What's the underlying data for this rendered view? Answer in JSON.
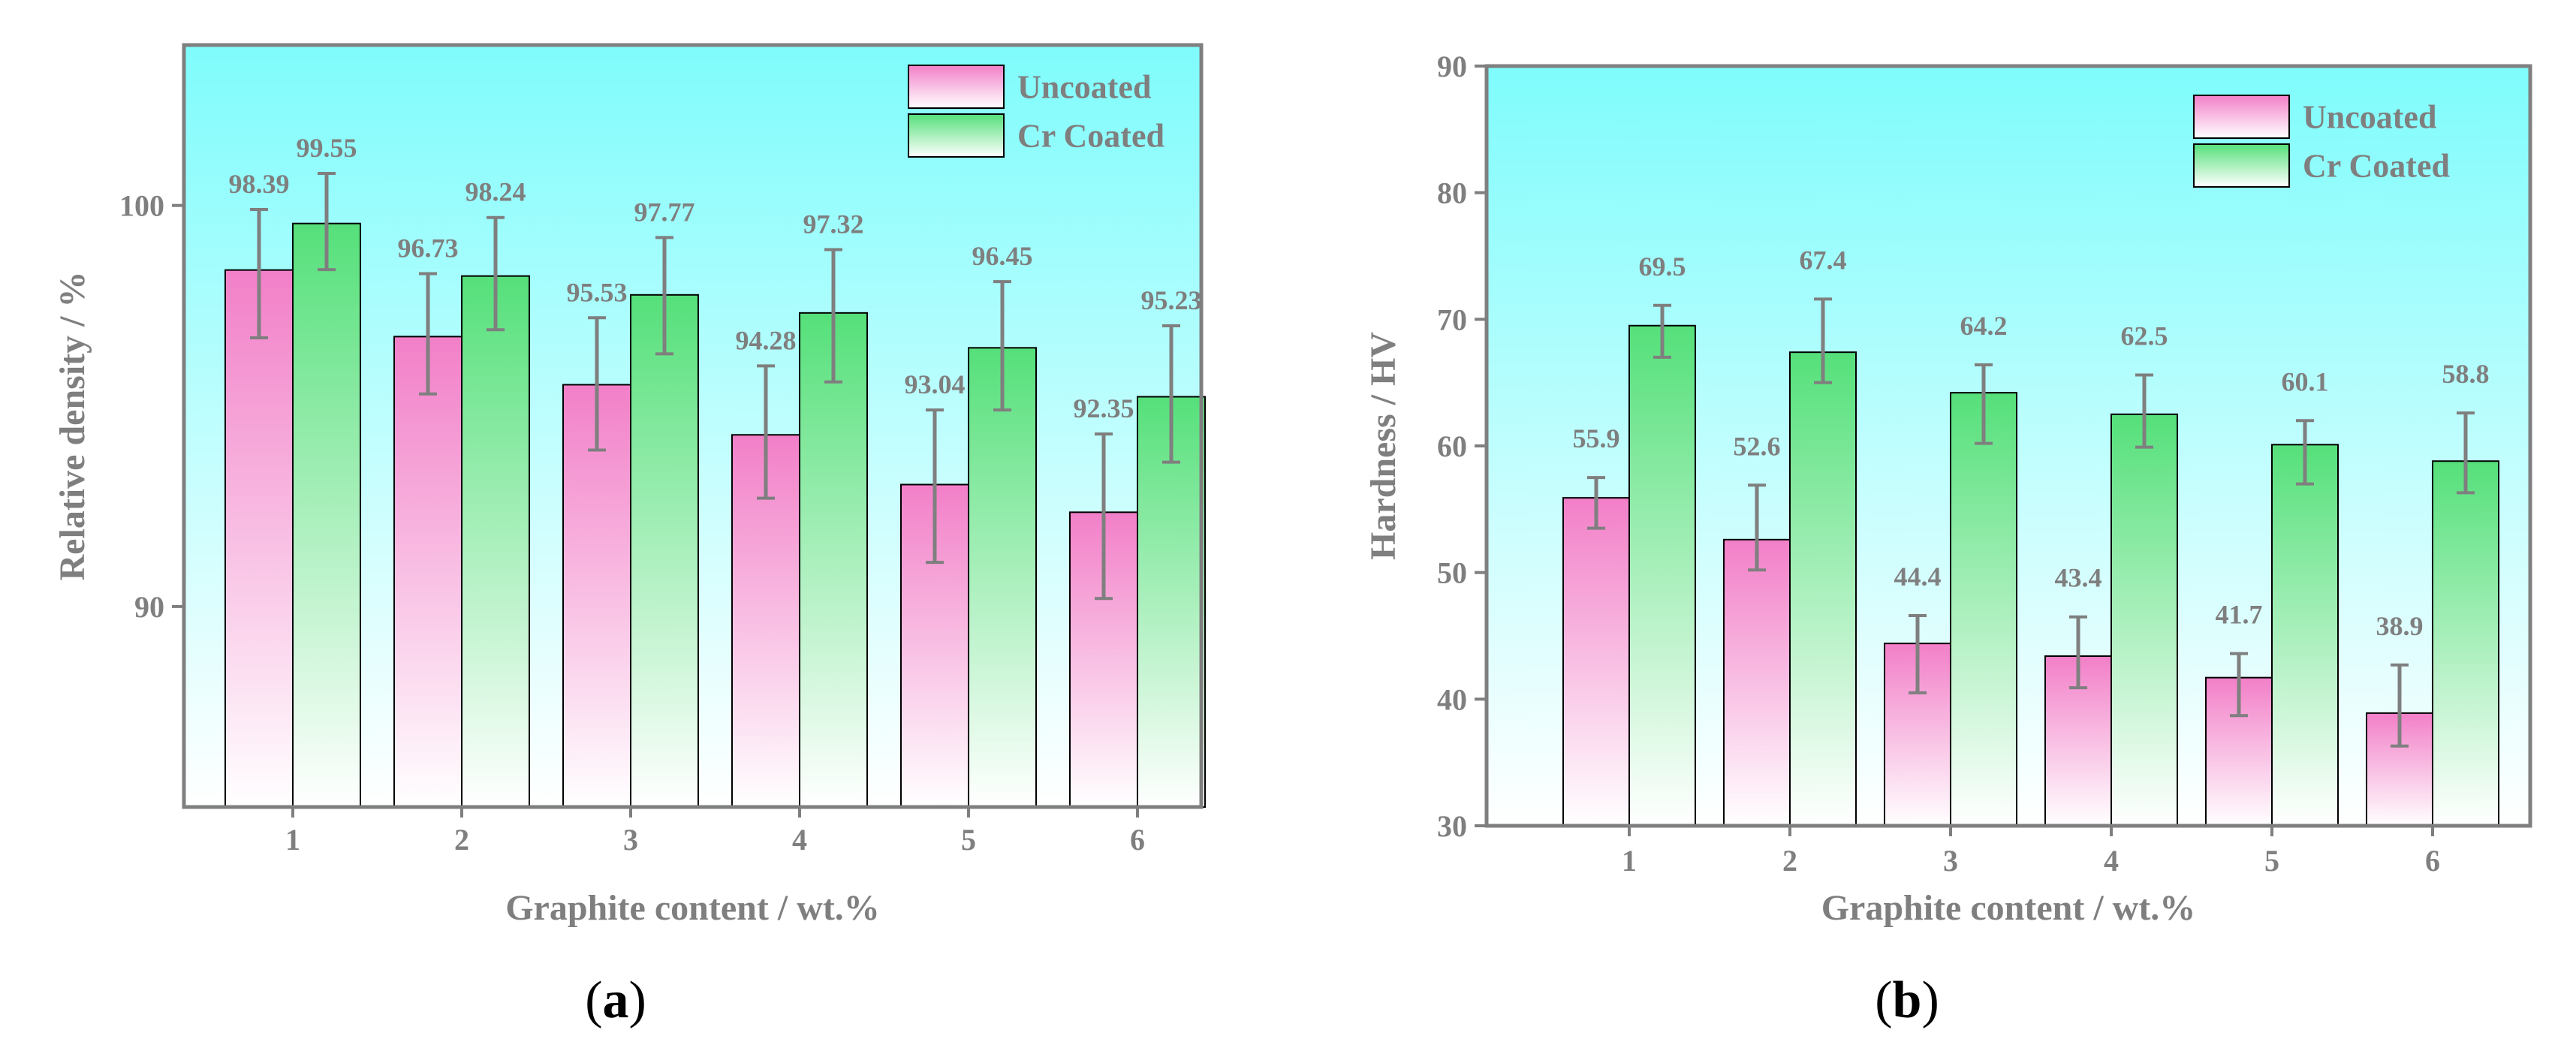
{
  "colors": {
    "uncoated_top": "#f27fc8",
    "uncoated_bottom": "#ffffff",
    "coated_top": "#55e07a",
    "coated_bottom": "#ffffff",
    "bg_top": "#7ffcfc",
    "bg_bottom": "#ffffff",
    "axis": "#7f7f7f",
    "error_bar": "#7f7f7f"
  },
  "chart_data": [
    {
      "type": "bar",
      "panel": "(a)",
      "xlabel": "Graphite content / wt.%",
      "ylabel": "Relative density / %",
      "categories": [
        "1",
        "2",
        "3",
        "4",
        "5",
        "6"
      ],
      "ylim": [
        85,
        104
      ],
      "yticks": [
        90,
        100
      ],
      "legend_position": "top-right",
      "series": [
        {
          "name": "Uncoated",
          "values": [
            98.39,
            96.73,
            95.53,
            94.28,
            93.04,
            92.35
          ],
          "value_labels": [
            "98.39",
            "96.73",
            "95.53",
            "94.28",
            "93.04",
            "92.35"
          ],
          "err_low": [
            96.7,
            95.3,
            93.9,
            92.7,
            91.1,
            90.2
          ],
          "err_high": [
            99.9,
            98.3,
            97.2,
            96.0,
            94.9,
            94.3
          ]
        },
        {
          "name": "Cr Coated",
          "values": [
            99.55,
            98.24,
            97.77,
            97.32,
            96.45,
            95.23
          ],
          "value_labels": [
            "99.55",
            "98.24",
            "97.77",
            "97.32",
            "96.45",
            "95.23"
          ],
          "err_low": [
            98.4,
            96.9,
            96.3,
            95.6,
            94.9,
            93.6
          ],
          "err_high": [
            100.8,
            99.7,
            99.2,
            98.9,
            98.1,
            97.0
          ]
        }
      ]
    },
    {
      "type": "bar",
      "panel": "(b)",
      "xlabel": "Graphite content / wt.%",
      "ylabel": "Hardness / HV",
      "categories": [
        "1",
        "2",
        "3",
        "4",
        "5",
        "6"
      ],
      "ylim": [
        30,
        90
      ],
      "yticks": [
        30,
        40,
        50,
        60,
        70,
        80,
        90
      ],
      "legend_position": "top-right",
      "series": [
        {
          "name": "Uncoated",
          "values": [
            55.9,
            52.6,
            44.4,
            43.4,
            41.7,
            38.9
          ],
          "value_labels": [
            "55.9",
            "52.6",
            "44.4",
            "43.4",
            "41.7",
            "38.9"
          ],
          "err_low": [
            53.5,
            50.2,
            40.5,
            40.9,
            38.7,
            36.3
          ],
          "err_high": [
            57.5,
            56.9,
            46.6,
            46.5,
            43.6,
            42.7
          ]
        },
        {
          "name": "Cr Coated",
          "values": [
            69.5,
            67.4,
            64.2,
            62.5,
            60.1,
            58.8
          ],
          "value_labels": [
            "69.5",
            "67.4",
            "64.2",
            "62.5",
            "60.1",
            "58.8"
          ],
          "err_low": [
            67.0,
            65.0,
            60.2,
            59.9,
            57.0,
            56.3
          ],
          "err_high": [
            71.1,
            71.6,
            66.4,
            65.6,
            62.0,
            62.6
          ]
        }
      ]
    }
  ]
}
